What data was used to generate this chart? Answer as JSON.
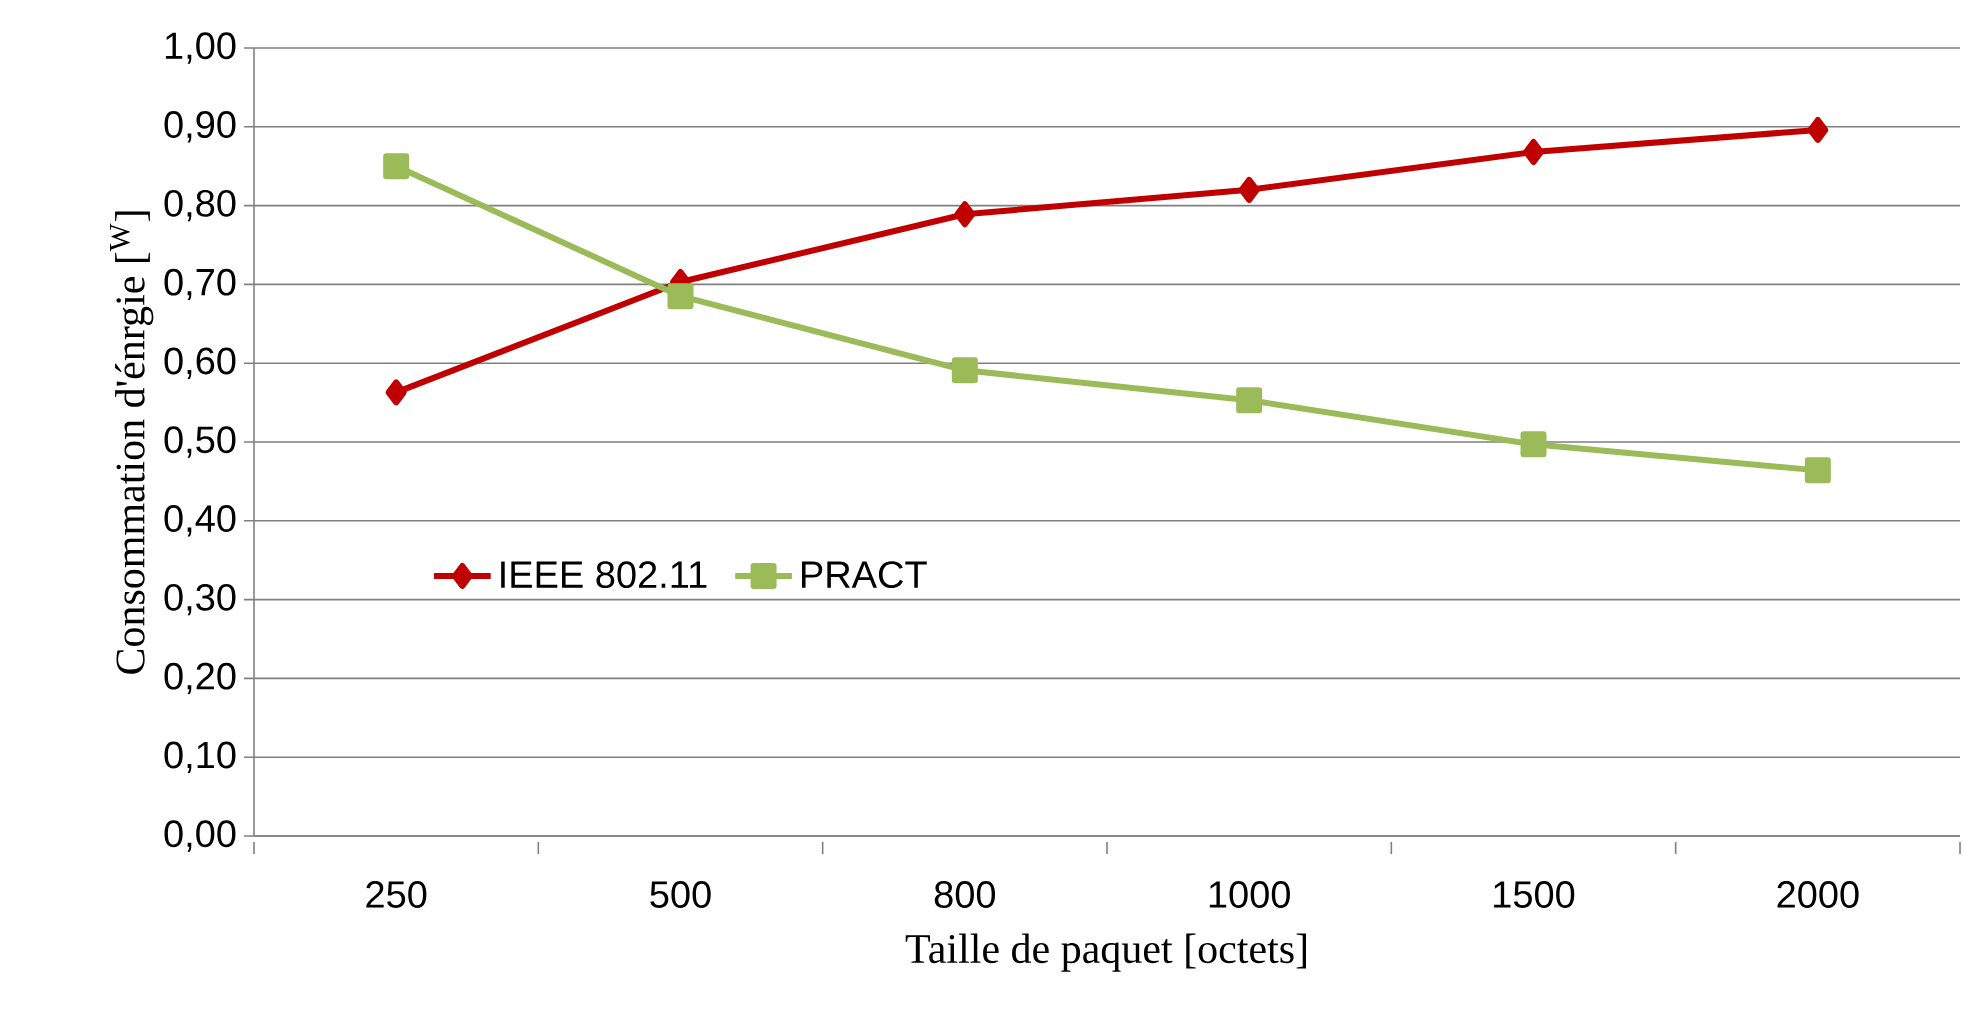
{
  "chart_data": {
    "type": "line",
    "xlabel": "Taille de paquet [octets]",
    "ylabel": "Consommation d'énrgie [$^{W}$]",
    "categories": [
      "250",
      "500",
      "800",
      "1000",
      "1500",
      "2000"
    ],
    "series": [
      {
        "name": "IEEE 802.11",
        "color": "#c00000",
        "marker": "diamond",
        "values": [
          0.563,
          0.703,
          0.789,
          0.82,
          0.868,
          0.896
        ]
      },
      {
        "name": "PRACT",
        "color": "#9bbb59",
        "marker": "square",
        "values": [
          0.85,
          0.685,
          0.591,
          0.553,
          0.497,
          0.464
        ]
      }
    ],
    "ylim": [
      0,
      1
    ],
    "yticks": [
      {
        "value": 0,
        "label": "0,00"
      },
      {
        "value": 0.1,
        "label": "0,10"
      },
      {
        "value": 0.2,
        "label": "0,20"
      },
      {
        "value": 0.3,
        "label": "0,30"
      },
      {
        "value": 0.4,
        "label": "0,40"
      },
      {
        "value": 0.5,
        "label": "0,50"
      },
      {
        "value": 0.6,
        "label": "0,60"
      },
      {
        "value": 0.7,
        "label": "0,70"
      },
      {
        "value": 0.8,
        "label": "0,80"
      },
      {
        "value": 0.9,
        "label": "0,90"
      },
      {
        "value": 1,
        "label": "1,00"
      }
    ],
    "grid": "y",
    "legend": "left",
    "line_style": "solid"
  }
}
